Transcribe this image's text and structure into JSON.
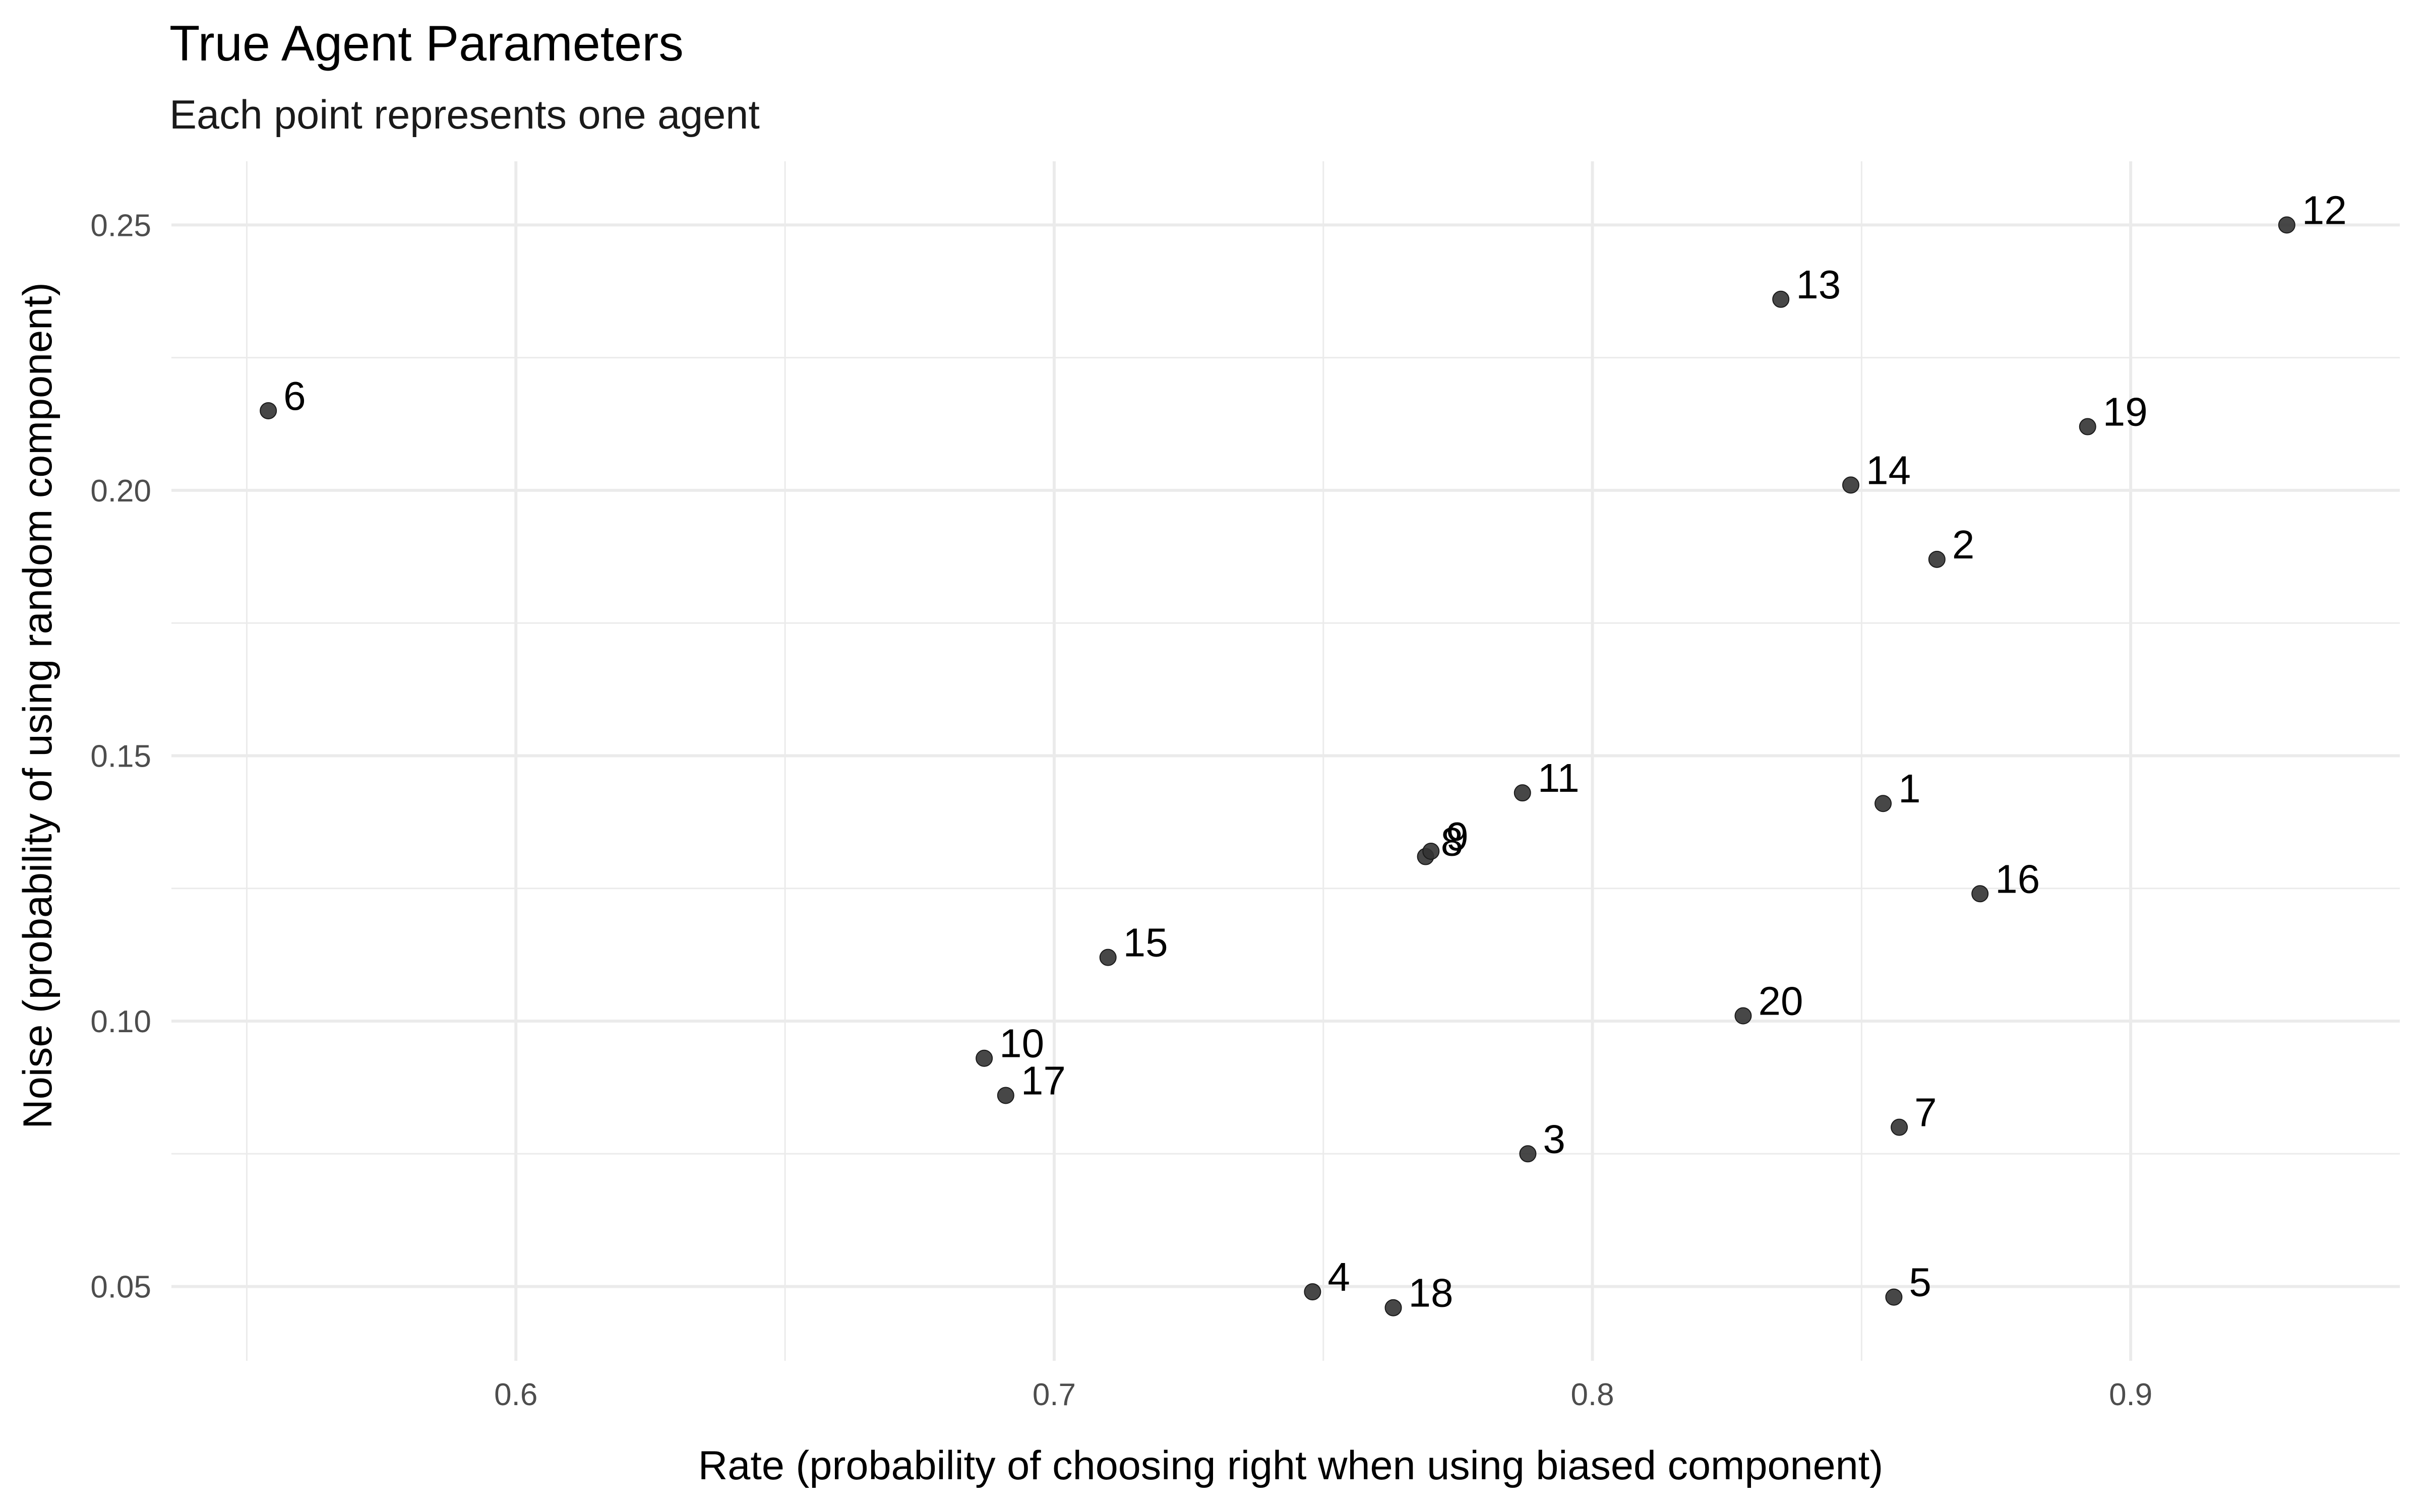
{
  "chart_data": {
    "type": "scatter",
    "title": "True Agent Parameters",
    "subtitle": "Each point represents one agent",
    "xlabel": "Rate (probability of choosing right when using biased component)",
    "ylabel": "Noise (probability of using random component)",
    "xlim": [
      0.536,
      0.95
    ],
    "ylim": [
      0.036,
      0.262
    ],
    "x_ticks": [
      0.6,
      0.7,
      0.8,
      0.9
    ],
    "x_tick_labels": [
      "0.6",
      "0.7",
      "0.8",
      "0.9"
    ],
    "y_ticks": [
      0.05,
      0.1,
      0.15,
      0.2,
      0.25
    ],
    "y_tick_labels": [
      "0.05",
      "0.10",
      "0.15",
      "0.20",
      "0.25"
    ],
    "x_minor": [
      0.55,
      0.65,
      0.75,
      0.85
    ],
    "y_minor": [
      0.075,
      0.125,
      0.175,
      0.225
    ],
    "grid": true,
    "legend": "none",
    "point_color": "#333333",
    "points": [
      {
        "label": "1",
        "x": 0.854,
        "y": 0.141
      },
      {
        "label": "2",
        "x": 0.864,
        "y": 0.187
      },
      {
        "label": "3",
        "x": 0.788,
        "y": 0.075
      },
      {
        "label": "4",
        "x": 0.748,
        "y": 0.049
      },
      {
        "label": "5",
        "x": 0.856,
        "y": 0.048
      },
      {
        "label": "6",
        "x": 0.554,
        "y": 0.215
      },
      {
        "label": "7",
        "x": 0.857,
        "y": 0.08
      },
      {
        "label": "8",
        "x": 0.769,
        "y": 0.131
      },
      {
        "label": "9",
        "x": 0.77,
        "y": 0.132
      },
      {
        "label": "10",
        "x": 0.687,
        "y": 0.093
      },
      {
        "label": "11",
        "x": 0.787,
        "y": 0.143
      },
      {
        "label": "12",
        "x": 0.929,
        "y": 0.25
      },
      {
        "label": "13",
        "x": 0.835,
        "y": 0.236
      },
      {
        "label": "14",
        "x": 0.848,
        "y": 0.201
      },
      {
        "label": "15",
        "x": 0.71,
        "y": 0.112
      },
      {
        "label": "16",
        "x": 0.872,
        "y": 0.124
      },
      {
        "label": "17",
        "x": 0.691,
        "y": 0.086
      },
      {
        "label": "18",
        "x": 0.763,
        "y": 0.046
      },
      {
        "label": "19",
        "x": 0.892,
        "y": 0.212
      },
      {
        "label": "20",
        "x": 0.828,
        "y": 0.101
      }
    ]
  }
}
